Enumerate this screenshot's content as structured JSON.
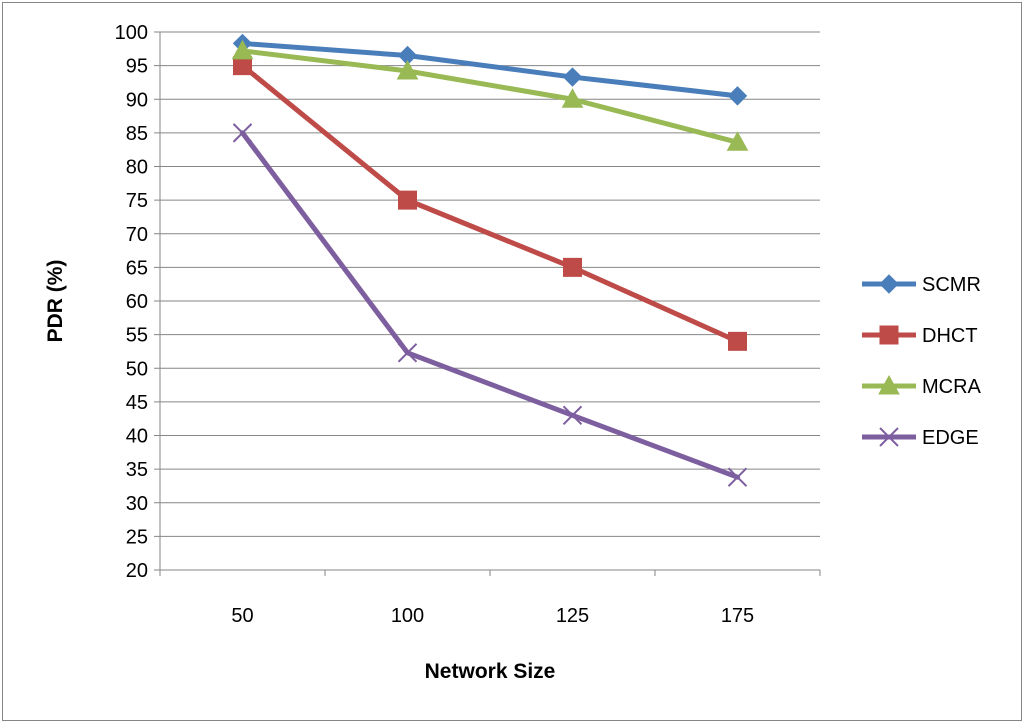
{
  "chart_data": {
    "type": "line",
    "title": "",
    "xlabel": "Network Size",
    "ylabel": "PDR (%)",
    "categories": [
      "50",
      "100",
      "125",
      "175"
    ],
    "ylim": [
      20,
      100
    ],
    "ytick_step": 5,
    "grid": true,
    "legend": "right",
    "series": [
      {
        "name": "SCMR",
        "color": "#4a7ebb",
        "marker": "diamond",
        "values": [
          98.3,
          96.5,
          93.3,
          90.5
        ]
      },
      {
        "name": "DHCT",
        "color": "#be4b48",
        "marker": "square",
        "values": [
          95.0,
          75.0,
          65.0,
          54.0
        ]
      },
      {
        "name": "MCRA",
        "color": "#98b954",
        "marker": "triangle",
        "values": [
          97.2,
          94.2,
          90.0,
          83.6
        ]
      },
      {
        "name": "EDGE",
        "color": "#7d5fa0",
        "marker": "x",
        "values": [
          85.0,
          52.3,
          43.0,
          33.8
        ]
      }
    ]
  }
}
